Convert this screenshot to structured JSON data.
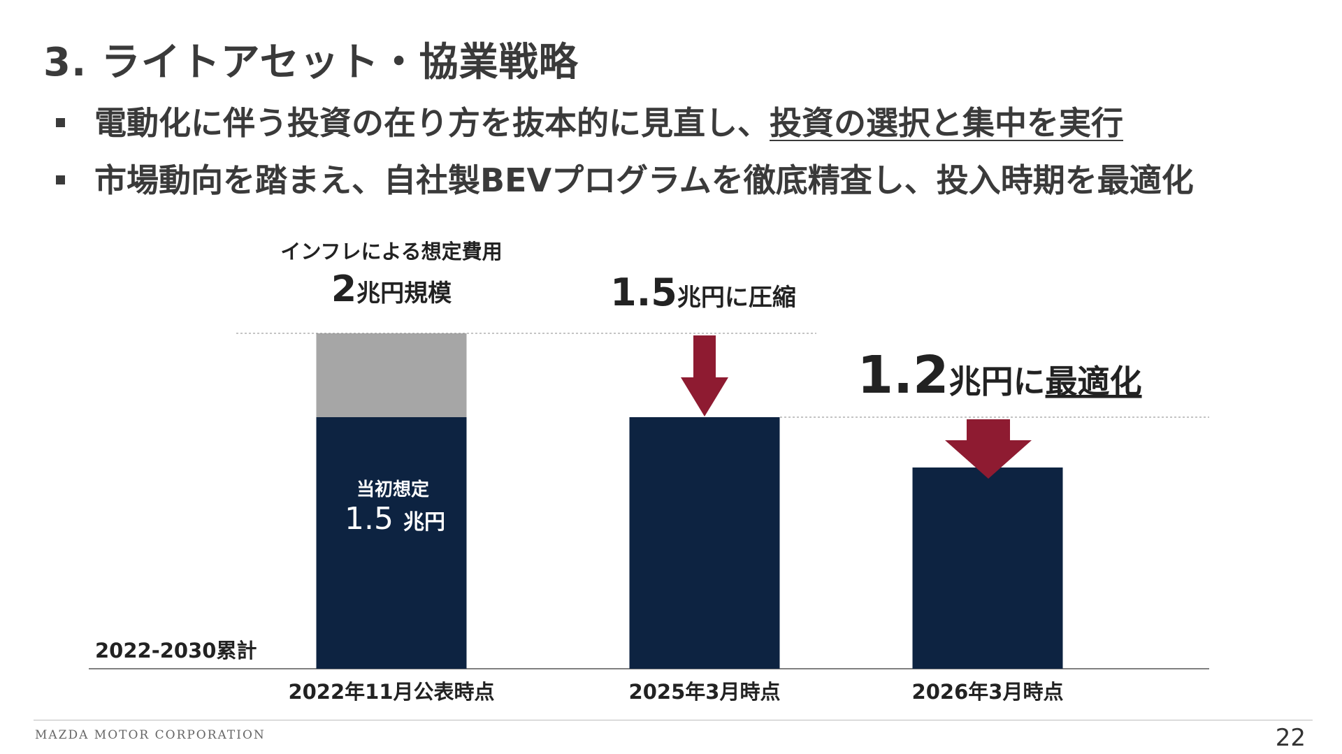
{
  "title": "3. ライトアセット・協業戦略",
  "bullets": [
    {
      "text": "電動化に伴う投資の在り方を抜本的に見直し、",
      "underlined": "投資の選択と集中を実行"
    },
    {
      "text": "市場動向を踏まえ、自社製BEVプログラムを徹底精査し、投入時期を最適化",
      "underlined": ""
    }
  ],
  "chart_data": {
    "type": "bar",
    "ylabel": "2022-2030累計",
    "unit": "兆円",
    "categories": [
      "2022年11月公表時点",
      "2025年3月時点",
      "2026年3月時点"
    ],
    "series": [
      {
        "name": "当初想定",
        "values": [
          1.5,
          1.5,
          1.2
        ],
        "color": "#0d2341"
      },
      {
        "name": "インフレによる想定費用",
        "values": [
          0.5,
          0,
          0
        ],
        "color": "#a6a6a6"
      }
    ],
    "ylim": [
      0,
      2.0
    ],
    "annotations": {
      "bar1_top_label": "インフレによる想定費用",
      "bar1_total_num": "2",
      "bar1_total_unit": "兆円規模",
      "bar1_inner_label": "当初想定",
      "bar1_inner_num": "1.5",
      "bar1_inner_unit": "兆円",
      "bar2_label_num": "1.5",
      "bar2_label_unit": "兆円に圧縮",
      "bar3_label_num": "1.2",
      "bar3_label_unit": "兆円に",
      "bar3_label_emph": "最適化"
    },
    "colors": {
      "dark": "#0d2341",
      "gray": "#a6a6a6",
      "arrow": "#8e1b31"
    }
  },
  "footer": {
    "company": "MAZDA MOTOR CORPORATION",
    "page": "22"
  }
}
